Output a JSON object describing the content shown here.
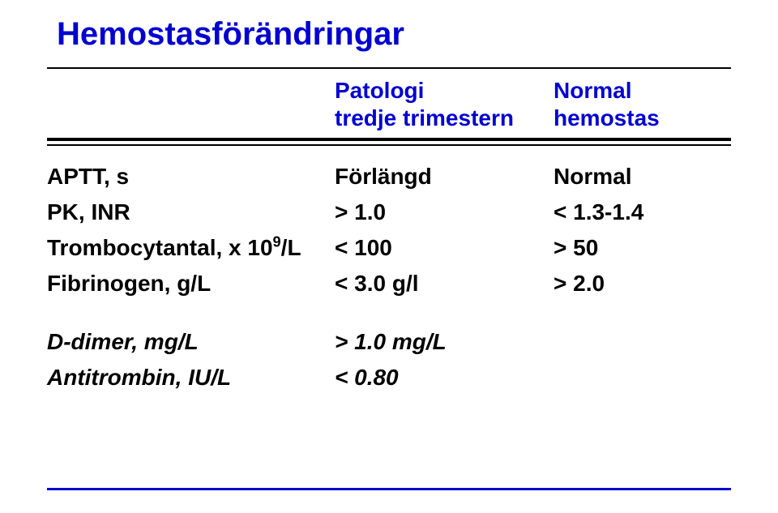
{
  "title": "Hemostasförändringar",
  "header": {
    "mid_line1": "Patologi",
    "mid_line2": "tredje trimestern",
    "right": "Normal hemostas"
  },
  "rows": [
    {
      "label": "APTT, s",
      "mid": "Förlängd",
      "right": "Normal",
      "italic": false,
      "sup": ""
    },
    {
      "label": "PK, INR",
      "mid": "> 1.0",
      "right": "<  1.3-1.4",
      "italic": false,
      "sup": ""
    },
    {
      "label": "Trombocytantal, x 10",
      "mid": "< 100",
      "right": ">  50",
      "italic": false,
      "sup": "9",
      "suffix": "/L"
    },
    {
      "label": "Fibrinogen, g/L",
      "mid": "< 3.0 g/l",
      "right": ">  2.0",
      "italic": false,
      "sup": ""
    }
  ],
  "extra_rows": [
    {
      "label": "D-dimer, mg/L",
      "mid": "> 1.0 mg/L",
      "right": "",
      "italic": true
    },
    {
      "label": "Antitrombin, IU/L",
      "mid": "<  0.80",
      "right": "",
      "italic": true
    }
  ]
}
